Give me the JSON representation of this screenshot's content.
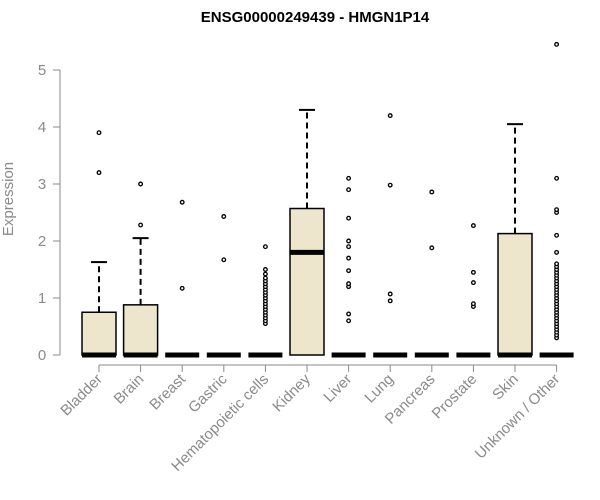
{
  "chart_data": {
    "type": "box",
    "title": "ENSG00000249439 - HMGN1P14",
    "xlabel": "",
    "ylabel": "Expression",
    "ylim": [
      0,
      5
    ],
    "yticks": [
      0,
      1,
      2,
      3,
      4,
      5
    ],
    "grid": false,
    "colors": {
      "box_fill": "#ede6cd",
      "box_stroke": "#000000",
      "axis": "#8a8a8a"
    },
    "categories": [
      "Bladder",
      "Brain",
      "Breast",
      "Gastric",
      "Hematopoietic cells",
      "Kidney",
      "Liver",
      "Lung",
      "Pancreas",
      "Prostate",
      "Skin",
      "Unknown / Other"
    ],
    "boxes": [
      {
        "q1": 0,
        "median": 0,
        "q3": 0.75,
        "whisker_low": 0,
        "whisker_high": 1.63,
        "outliers": [
          3.2,
          3.9
        ]
      },
      {
        "q1": 0,
        "median": 0,
        "q3": 0.88,
        "whisker_low": 0,
        "whisker_high": 2.05,
        "outliers": [
          2.28,
          3.0
        ]
      },
      {
        "q1": 0,
        "median": 0,
        "q3": 0,
        "whisker_low": 0,
        "whisker_high": 0,
        "outliers": [
          1.17,
          2.68
        ]
      },
      {
        "q1": 0,
        "median": 0,
        "q3": 0,
        "whisker_low": 0,
        "whisker_high": 0,
        "outliers": [
          1.67,
          2.43
        ]
      },
      {
        "q1": 0,
        "median": 0,
        "q3": 0,
        "whisker_low": 0,
        "whisker_high": 0,
        "outliers": [
          0.55,
          0.6,
          0.65,
          0.7,
          0.75,
          0.8,
          0.85,
          0.9,
          0.95,
          1.0,
          1.05,
          1.1,
          1.15,
          1.2,
          1.25,
          1.3,
          1.35,
          1.42,
          1.5,
          1.9
        ]
      },
      {
        "q1": 0,
        "median": 1.8,
        "q3": 2.57,
        "whisker_low": 0,
        "whisker_high": 4.3,
        "outliers": []
      },
      {
        "q1": 0,
        "median": 0,
        "q3": 0,
        "whisker_low": 0,
        "whisker_high": 0,
        "outliers": [
          0.6,
          0.72,
          1.2,
          1.25,
          1.48,
          1.7,
          1.9,
          2.0,
          2.4,
          2.9,
          3.1
        ]
      },
      {
        "q1": 0,
        "median": 0,
        "q3": 0,
        "whisker_low": 0,
        "whisker_high": 0,
        "outliers": [
          0.95,
          1.07,
          2.98,
          4.2
        ]
      },
      {
        "q1": 0,
        "median": 0,
        "q3": 0,
        "whisker_low": 0,
        "whisker_high": 0,
        "outliers": [
          1.88,
          2.86
        ]
      },
      {
        "q1": 0,
        "median": 0,
        "q3": 0,
        "whisker_low": 0,
        "whisker_high": 0,
        "outliers": [
          0.85,
          0.9,
          1.27,
          1.45,
          2.27
        ]
      },
      {
        "q1": 0,
        "median": 0,
        "q3": 2.13,
        "whisker_low": 0,
        "whisker_high": 4.05,
        "outliers": []
      },
      {
        "q1": 0,
        "median": 0,
        "q3": 0,
        "whisker_low": 0,
        "whisker_high": 0,
        "outliers": [
          0.3,
          0.35,
          0.4,
          0.45,
          0.5,
          0.55,
          0.6,
          0.65,
          0.7,
          0.75,
          0.8,
          0.85,
          0.9,
          0.95,
          1.0,
          1.05,
          1.1,
          1.15,
          1.2,
          1.25,
          1.3,
          1.35,
          1.4,
          1.45,
          1.5,
          1.55,
          1.6,
          1.8,
          2.1,
          2.5,
          2.55,
          3.1,
          5.45
        ]
      }
    ]
  }
}
